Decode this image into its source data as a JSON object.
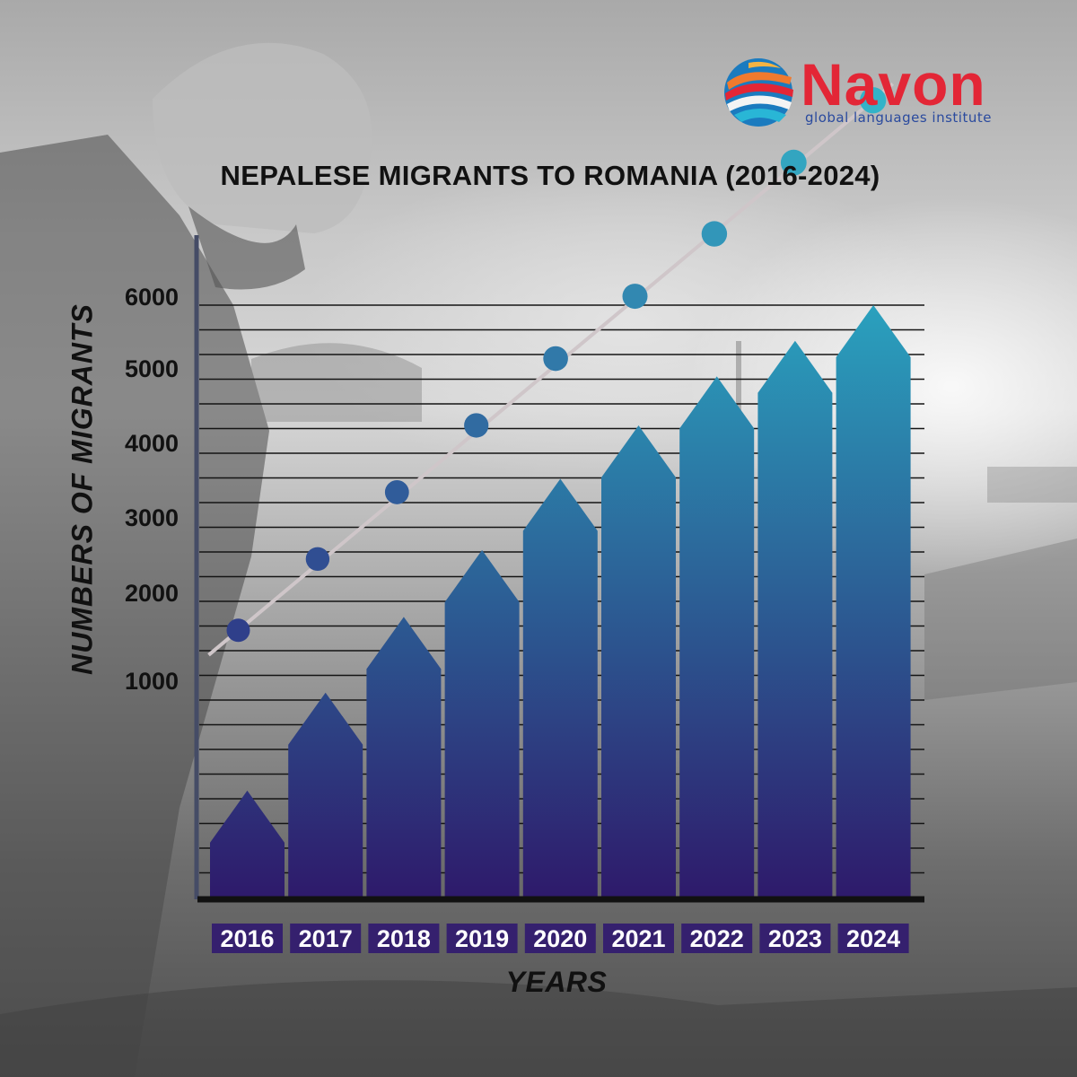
{
  "brand": {
    "name": "Navon",
    "tagline": "global languages institute",
    "colors": {
      "wordmark": "#e32636",
      "tagline": "#2a4a9e"
    },
    "icon": "globe-swirl-icon"
  },
  "chart_data": {
    "type": "bar",
    "title": "NEPALESE MIGRANTS TO ROMANIA (2016-2024)",
    "xlabel": "YEARS",
    "ylabel": "NUMBERS OF MIGRANTS",
    "categories": [
      "2016",
      "2017",
      "2018",
      "2019",
      "2020",
      "2021",
      "2022",
      "2023",
      "2024"
    ],
    "series": [
      {
        "values": [
          1200,
          2300,
          3150,
          3900,
          4700,
          5300,
          5850,
          6250,
          6650
        ]
      }
    ],
    "trend_points": [
      3000,
      3800,
      4550,
      5300,
      6050,
      6750,
      7450,
      8250,
      8950
    ],
    "y_ticks": [
      "1000",
      "2000",
      "3000",
      "4000",
      "5000",
      "6000"
    ],
    "ylim": [
      0,
      6650
    ],
    "grid": true,
    "colors": {
      "bar_top": "#2aa3bf",
      "bar_bottom": "#2e1a6b",
      "trend_line": "#cfc6c9",
      "axis": "#111111"
    }
  }
}
